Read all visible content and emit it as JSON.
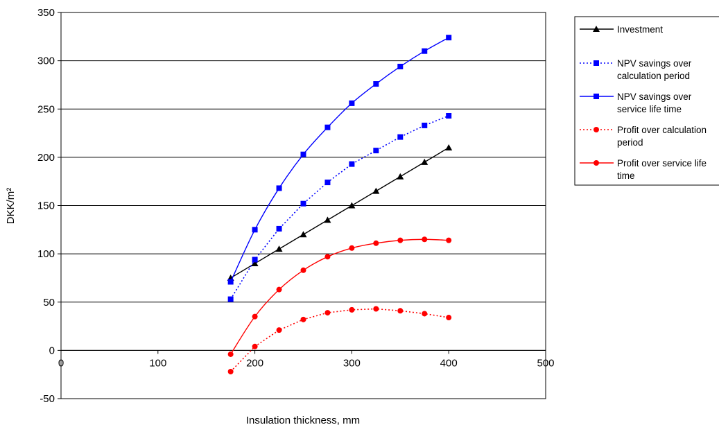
{
  "chart_data": {
    "type": "line",
    "xlabel": "Insulation thickness, mm",
    "ylabel": "DKK/m²",
    "xlim": [
      0,
      500
    ],
    "ylim": [
      -50,
      350
    ],
    "x_ticks": [
      "0",
      "100",
      "200",
      "300",
      "400",
      "500"
    ],
    "y_ticks": [
      "-50",
      "0",
      "50",
      "100",
      "150",
      "200",
      "250",
      "300",
      "350"
    ],
    "grid": "horizontal",
    "legend_position": "right",
    "x": [
      175,
      200,
      225,
      250,
      275,
      300,
      325,
      350,
      375,
      400
    ],
    "series": [
      {
        "name_lines": [
          "Investment"
        ],
        "color": "#000000",
        "marker": "triangle",
        "line": "solid",
        "values": [
          75,
          90,
          105,
          120,
          135,
          150,
          165,
          180,
          195,
          210
        ]
      },
      {
        "name_lines": [
          "NPV savings over",
          "calculation period"
        ],
        "color": "#0000ff",
        "marker": "square",
        "line": "dotted",
        "values": [
          53,
          94,
          126,
          152,
          174,
          193,
          207,
          221,
          233,
          243
        ]
      },
      {
        "name_lines": [
          "NPV savings over",
          "service life time"
        ],
        "color": "#0000ff",
        "marker": "square",
        "line": "solid",
        "values": [
          71,
          125,
          168,
          203,
          231,
          256,
          276,
          294,
          310,
          324
        ]
      },
      {
        "name_lines": [
          "Profit over calculation",
          "period"
        ],
        "color": "#ff0000",
        "marker": "circle",
        "line": "dotted",
        "values": [
          -22,
          4,
          21,
          32,
          39,
          42,
          43,
          41,
          38,
          34
        ]
      },
      {
        "name_lines": [
          "Profit over service life",
          "time"
        ],
        "color": "#ff0000",
        "marker": "circle",
        "line": "solid",
        "values": [
          -4,
          35,
          63,
          83,
          97,
          106,
          111,
          114,
          115,
          114
        ]
      }
    ]
  }
}
